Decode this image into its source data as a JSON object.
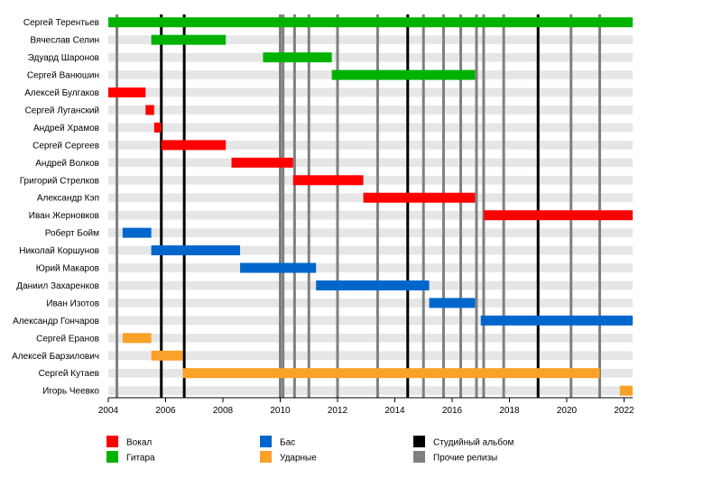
{
  "chart_data": {
    "type": "timeline",
    "xlim": [
      2004,
      2022.3
    ],
    "x_ticks": [
      "2004",
      "2006",
      "2008",
      "2010",
      "2012",
      "2014",
      "2016",
      "2018",
      "2020",
      "2022"
    ],
    "members": [
      {
        "name": "Сергей Терентьев",
        "periods": [
          {
            "start": 2004.0,
            "end": 2022.3,
            "role": "guitar"
          }
        ]
      },
      {
        "name": "Вячеслав Селин",
        "periods": [
          {
            "start": 2005.5,
            "end": 2008.1,
            "role": "guitar"
          }
        ]
      },
      {
        "name": "Эдуард Шаронов",
        "periods": [
          {
            "start": 2009.4,
            "end": 2011.8,
            "role": "guitar"
          }
        ]
      },
      {
        "name": "Сергей Ванюшин",
        "periods": [
          {
            "start": 2011.8,
            "end": 2016.8,
            "role": "guitar"
          }
        ]
      },
      {
        "name": "Алексей Булгаков",
        "periods": [
          {
            "start": 2004.0,
            "end": 2005.3,
            "role": "vocal"
          }
        ]
      },
      {
        "name": "Сергей Луганский",
        "periods": [
          {
            "start": 2005.3,
            "end": 2005.6,
            "role": "vocal"
          }
        ]
      },
      {
        "name": "Андрей Храмов",
        "periods": [
          {
            "start": 2005.6,
            "end": 2005.85,
            "role": "vocal"
          }
        ]
      },
      {
        "name": "Сергей Сергеев",
        "periods": [
          {
            "start": 2005.85,
            "end": 2008.1,
            "role": "vocal"
          }
        ]
      },
      {
        "name": "Андрей Волков",
        "periods": [
          {
            "start": 2008.3,
            "end": 2010.45,
            "role": "vocal"
          }
        ]
      },
      {
        "name": "Григорий Стрелков",
        "periods": [
          {
            "start": 2010.45,
            "end": 2012.9,
            "role": "vocal"
          }
        ]
      },
      {
        "name": "Александр Кэп",
        "periods": [
          {
            "start": 2012.9,
            "end": 2016.8,
            "role": "vocal"
          }
        ]
      },
      {
        "name": "Иван Жерновков",
        "periods": [
          {
            "start": 2017.1,
            "end": 2022.3,
            "role": "vocal"
          }
        ]
      },
      {
        "name": "Роберт Бойм",
        "periods": [
          {
            "start": 2004.5,
            "end": 2005.5,
            "role": "bass"
          }
        ]
      },
      {
        "name": "Николай Коршунов",
        "periods": [
          {
            "start": 2005.5,
            "end": 2008.6,
            "role": "bass"
          }
        ]
      },
      {
        "name": "Юрий Макаров",
        "periods": [
          {
            "start": 2008.6,
            "end": 2011.25,
            "role": "bass"
          }
        ]
      },
      {
        "name": "Даниил Захаренков",
        "periods": [
          {
            "start": 2011.25,
            "end": 2015.2,
            "role": "bass"
          }
        ]
      },
      {
        "name": "Иван Изотов",
        "periods": [
          {
            "start": 2015.2,
            "end": 2016.8,
            "role": "bass"
          }
        ]
      },
      {
        "name": "Александр Гончаров",
        "periods": [
          {
            "start": 2017.0,
            "end": 2022.3,
            "role": "bass"
          }
        ]
      },
      {
        "name": "Сергей Еранов",
        "periods": [
          {
            "start": 2004.5,
            "end": 2005.5,
            "role": "drums"
          }
        ]
      },
      {
        "name": "Алексей Барзилович",
        "periods": [
          {
            "start": 2005.5,
            "end": 2006.6,
            "role": "drums"
          }
        ]
      },
      {
        "name": "Сергей Кутаев",
        "periods": [
          {
            "start": 2006.6,
            "end": 2021.15,
            "role": "drums"
          }
        ]
      },
      {
        "name": "Игорь Чеевко",
        "periods": [
          {
            "start": 2021.85,
            "end": 2022.3,
            "role": "drums"
          }
        ]
      }
    ],
    "studio_albums": [
      2005.85,
      2006.65,
      2014.45,
      2019.0
    ],
    "other_releases": [
      2004.3,
      2010.0,
      2010.1,
      2010.5,
      2011.0,
      2012.0,
      2013.4,
      2015.0,
      2015.7,
      2016.3,
      2016.85,
      2017.1,
      2017.8,
      2020.15,
      2021.15
    ],
    "legend": [
      {
        "key": "vocal",
        "label": "Вокал",
        "color": "#ff0000"
      },
      {
        "key": "guitar",
        "label": "Гитара",
        "color": "#00b200"
      },
      {
        "key": "bass",
        "label": "Бас",
        "color": "#0066cc"
      },
      {
        "key": "drums",
        "label": "Ударные",
        "color": "#f9a128"
      },
      {
        "key": "studio",
        "label": "Студийный альбом",
        "color": "#000000"
      },
      {
        "key": "other",
        "label": "Прочие релизы",
        "color": "#808080"
      }
    ],
    "row_shade_color": "#e6e6e6"
  }
}
